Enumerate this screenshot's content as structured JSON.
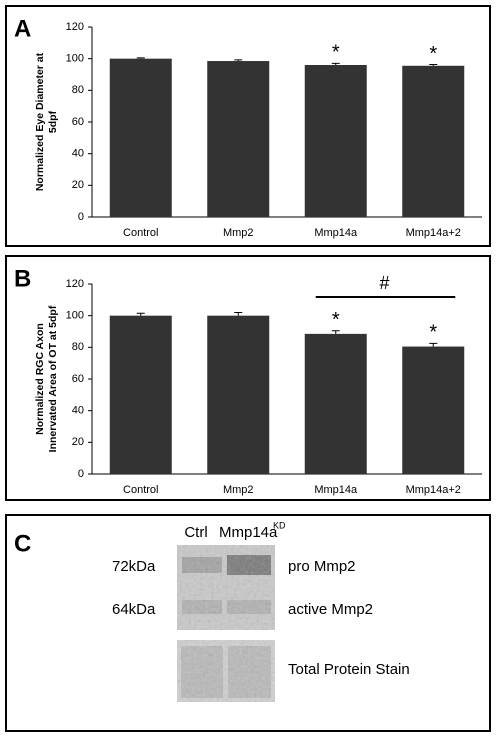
{
  "chart_data": [
    {
      "type": "bar",
      "panel": "A",
      "ylabel": [
        "Normalized Eye Diameter at",
        "5dpf"
      ],
      "categories": [
        "Control",
        "Mmp2",
        "Mmp14a",
        "Mmp14a+2"
      ],
      "values": [
        100,
        98.5,
        96,
        95.5
      ],
      "errors": [
        0.5,
        0.7,
        1,
        0.8
      ],
      "color": "#333333",
      "ylim": [
        0,
        120
      ],
      "yticks": [
        0,
        20,
        40,
        60,
        80,
        100,
        120
      ],
      "annotations": [
        {
          "category": "Mmp14a",
          "text": "*"
        },
        {
          "category": "Mmp14a+2",
          "text": "*"
        }
      ]
    },
    {
      "type": "bar",
      "panel": "B",
      "ylabel": [
        "Normalized RGC Axon",
        "Innervated Area of OT at 5dpf"
      ],
      "categories": [
        "Control",
        "Mmp2",
        "Mmp14a",
        "Mmp14a+2"
      ],
      "values": [
        100,
        100,
        88.5,
        80.5
      ],
      "errors": [
        1.5,
        2,
        2,
        2
      ],
      "color": "#333333",
      "ylim": [
        0,
        120
      ],
      "yticks": [
        0,
        20,
        40,
        60,
        80,
        100,
        120
      ],
      "annotations": [
        {
          "category": "Mmp14a",
          "text": "*"
        },
        {
          "category": "Mmp14a+2",
          "text": "*"
        }
      ],
      "bracket": {
        "categories": [
          "Mmp14a",
          "Mmp14a+2"
        ],
        "text": "#"
      }
    }
  ],
  "blot": {
    "panel": "C",
    "lanes": [
      {
        "label": "Ctrl"
      },
      {
        "label": "Mmp14a",
        "superscript": "KD"
      }
    ],
    "markers": [
      "72kDa",
      "64kDa"
    ],
    "bands": [
      "pro Mmp2",
      "active Mmp2",
      "Total Protein Stain"
    ]
  }
}
